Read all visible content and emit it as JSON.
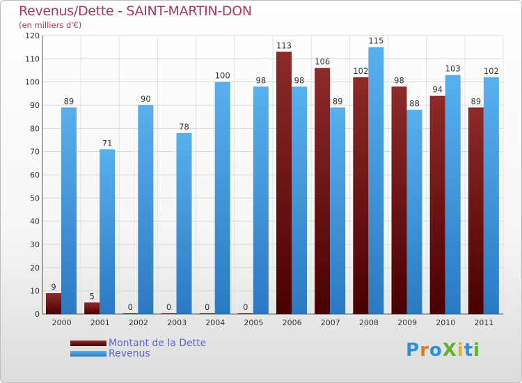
{
  "brand": {
    "text": "ProXiti",
    "letters": [
      {
        "char": "P",
        "color": "#2f8fd8"
      },
      {
        "char": "r",
        "color": "#e07a1f"
      },
      {
        "char": "o",
        "color": "#2f8fd8"
      },
      {
        "char": "X",
        "color": "#59b42c"
      },
      {
        "char": "i",
        "color": "#e0b31f"
      },
      {
        "char": "t",
        "color": "#2f8fd8"
      },
      {
        "char": "i",
        "color": "#59b42c"
      }
    ]
  },
  "chart_data": {
    "type": "bar",
    "title": "Revenus/Dette - SAINT-MARTIN-DON",
    "subtitle": "(en milliers d'€)",
    "categories": [
      "2000",
      "2001",
      "2002",
      "2003",
      "2004",
      "2005",
      "2006",
      "2007",
      "2008",
      "2009",
      "2010",
      "2011"
    ],
    "series": [
      {
        "name": "Montant de la Dette",
        "color": "#7a1414",
        "values": [
          9,
          5,
          0,
          0,
          0,
          0,
          113,
          106,
          102,
          98,
          94,
          89
        ]
      },
      {
        "name": "Revenus",
        "color": "#3d9de0",
        "values": [
          89,
          71,
          90,
          78,
          100,
          98,
          98,
          89,
          115,
          88,
          103,
          102
        ]
      }
    ],
    "ylim": [
      0,
      120
    ],
    "yticks": [
      0,
      10,
      20,
      30,
      40,
      50,
      60,
      70,
      80,
      90,
      100,
      110,
      120
    ],
    "grid": true,
    "legend": "bottom-left"
  }
}
